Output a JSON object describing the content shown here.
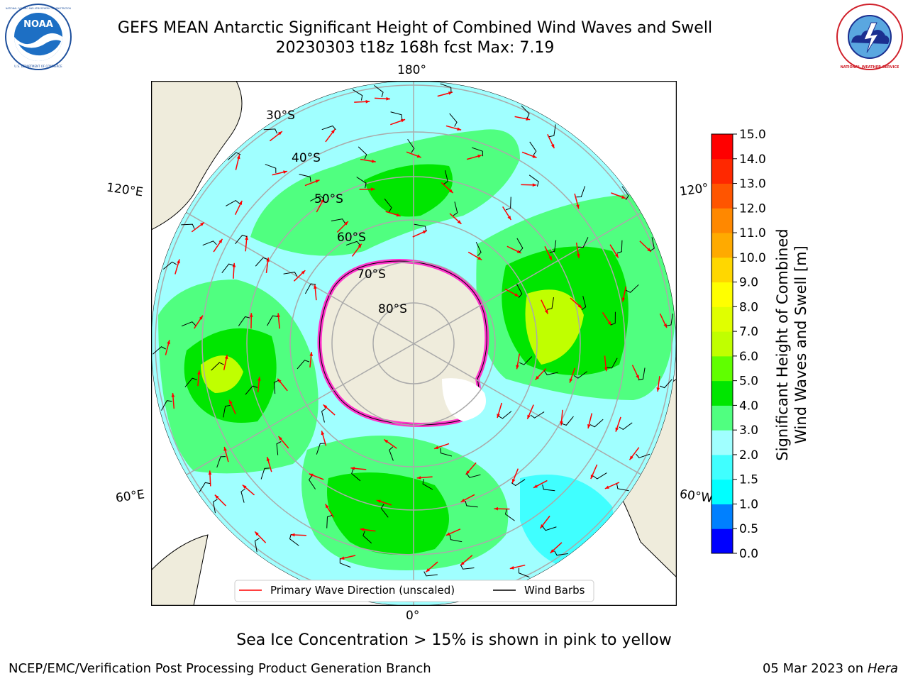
{
  "title": {
    "line1": "GEFS MEAN Antarctic Significant Height of Combined Wind Waves and Swell",
    "line2": "20230303 t18z 168h fcst   Max: 7.19"
  },
  "logos": {
    "left": "NOAA",
    "right": "NATIONAL WEATHER SERVICE",
    "left_ring": "NATIONAL OCEANIC AND ATMOSPHERIC ADMINISTRATION",
    "left_bottom": "U.S. DEPARTMENT OF COMMERCE"
  },
  "map": {
    "longitude_labels": {
      "top": "180°",
      "bottom": "0°",
      "left_upper": "120°E",
      "left_lower": "60°E",
      "right_upper": "120°",
      "right_lower": "60°W"
    },
    "latitude_labels": [
      "30°S",
      "40°S",
      "50°S",
      "60°S",
      "70°S",
      "80°S"
    ]
  },
  "legend": {
    "wave_label": "Primary Wave Direction (unscaled)",
    "barb_label": "Wind Barbs",
    "wave_color": "#ff0000",
    "barb_color": "#000000"
  },
  "colorbar": {
    "label_line1": "Significant Height of Combined",
    "label_line2": "Wind Waves and Swell [m]",
    "ticks": [
      "0.0",
      "0.5",
      "1.0",
      "1.5",
      "2.0",
      "3.0",
      "4.0",
      "5.0",
      "6.0",
      "7.0",
      "8.0",
      "9.0",
      "10.0",
      "11.0",
      "12.0",
      "13.0",
      "14.0",
      "15.0"
    ],
    "colors": [
      "#0000ff",
      "#0080ff",
      "#00ffff",
      "#40ffff",
      "#a0ffff",
      "#50ff80",
      "#00e600",
      "#60ff00",
      "#c0ff00",
      "#e0ff00",
      "#ffff00",
      "#ffd700",
      "#ffaa00",
      "#ff8800",
      "#ff5500",
      "#ff2800",
      "#ff0000"
    ]
  },
  "footer": {
    "note": "Sea Ice Concentration > 15% is shown in pink to yellow",
    "credit_left": "NCEP/EMC/Verification Post Processing Product Generation Branch",
    "date": "05 Mar 2023 on",
    "machine": "Hera"
  }
}
